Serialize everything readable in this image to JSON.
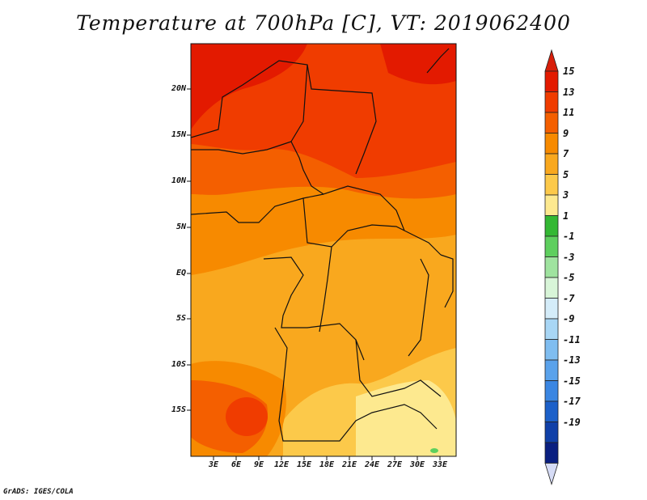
{
  "title": "Temperature at 700hPa [C], VT: 2019062400",
  "credit": "GrADS: IGES/COLA",
  "map": {
    "region": "Central Africa",
    "lat_ticks": [
      "20N",
      "15N",
      "10N",
      "5N",
      "EQ",
      "5S",
      "10S",
      "15S"
    ],
    "lon_ticks": [
      "3E",
      "6E",
      "9E",
      "12E",
      "15E",
      "18E",
      "21E",
      "24E",
      "27E",
      "30E",
      "33E"
    ]
  },
  "colorbar": {
    "labels": [
      "15",
      "13",
      "11",
      "9",
      "7",
      "5",
      "3",
      "1",
      "-1",
      "-3",
      "-5",
      "-7",
      "-9",
      "-11",
      "-13",
      "-15",
      "-17",
      "-19"
    ],
    "colors": [
      "#e31a00",
      "#f03c00",
      "#f45f00",
      "#f78a00",
      "#f9a81e",
      "#fcc94a",
      "#fde98f",
      "#33b833",
      "#5ecf5e",
      "#9fe39f",
      "#d8f5d8",
      "#d4ecf9",
      "#a8d6f5",
      "#7fbdf0",
      "#5aa2eb",
      "#3a86e2",
      "#1c60c9",
      "#1040a8",
      "#0a1f80"
    ],
    "over_color": "#d81e0a",
    "under_color": "#d6dcf6"
  }
}
